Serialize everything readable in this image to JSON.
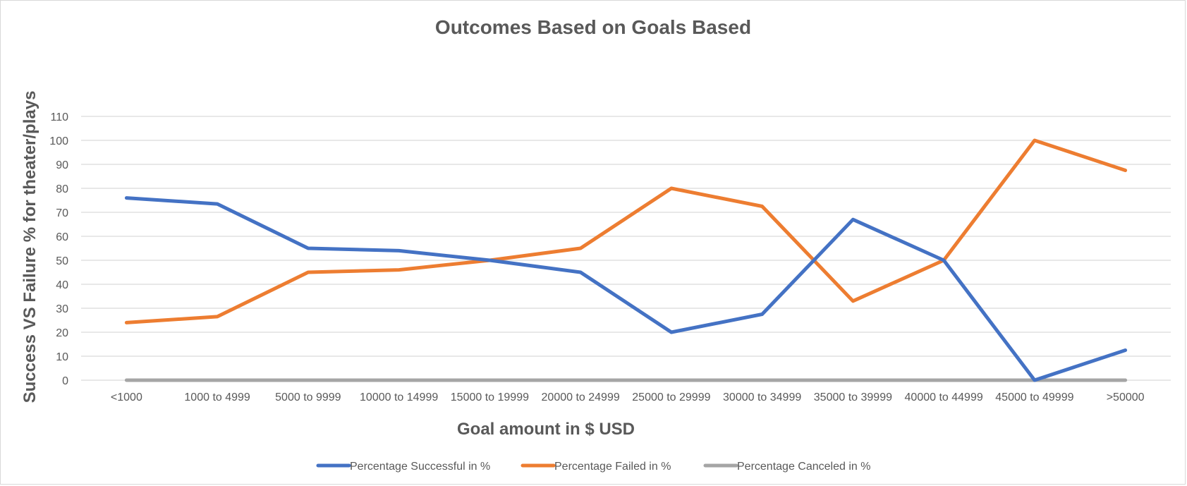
{
  "chart_data": {
    "type": "line",
    "title": "Outcomes Based on Goals Based",
    "xlabel": "Goal amount in $ USD",
    "ylabel": "Success VS Failure % for theater/plays",
    "categories": [
      "<1000",
      "1000 to 4999",
      "5000 to 9999",
      "10000 to 14999",
      "15000 to 19999",
      "20000 to 24999",
      "25000 to 29999",
      "30000 to 34999",
      "35000 to 39999",
      "40000 to 44999",
      "45000 to 49999",
      ">50000"
    ],
    "ylim": [
      0,
      110
    ],
    "yticks": [
      0,
      10,
      20,
      30,
      40,
      50,
      60,
      70,
      80,
      90,
      100,
      110
    ],
    "grid": true,
    "legend_position": "bottom",
    "series": [
      {
        "name": "Percentage Successful in %",
        "color": "#4472C4",
        "values": [
          76,
          73.5,
          55,
          54,
          50,
          45,
          20,
          27.5,
          67,
          50,
          0,
          12.5
        ]
      },
      {
        "name": "Percentage Failed in %",
        "color": "#ED7D31",
        "values": [
          24,
          26.5,
          45,
          46,
          50,
          55,
          80,
          72.5,
          33,
          50,
          100,
          87.5
        ]
      },
      {
        "name": "Percentage Canceled in %",
        "color": "#A5A5A5",
        "values": [
          0,
          0,
          0,
          0,
          0,
          0,
          0,
          0,
          0,
          0,
          0,
          0
        ]
      }
    ]
  }
}
